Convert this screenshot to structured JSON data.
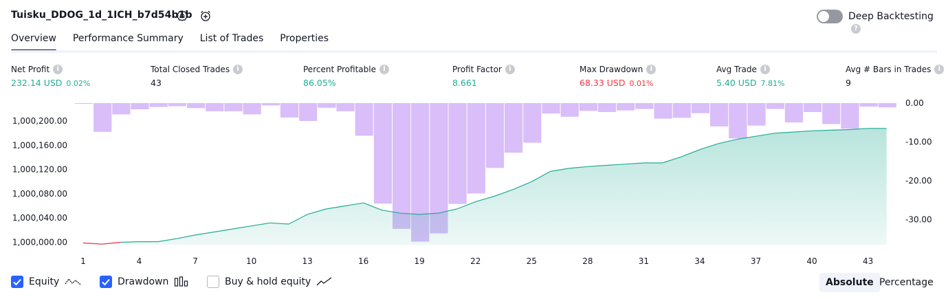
{
  "header": {
    "strategy_name": "Tuisku_DDOG_1d_1ICH_b7d54b1b",
    "settings_icon": "gear-icon",
    "alert_icon": "alarm-clock-plus-icon",
    "deep_backtesting_label": "Deep Backtesting",
    "deep_backtesting_enabled": false,
    "help_icon": "question-circle-icon"
  },
  "tabs": [
    {
      "label": "Overview",
      "active": true
    },
    {
      "label": "Performance Summary",
      "active": false
    },
    {
      "label": "List of Trades",
      "active": false
    },
    {
      "label": "Properties",
      "active": false
    }
  ],
  "stats": [
    {
      "label": "Net Profit",
      "value": "232.14 USD",
      "sub": "0.02%",
      "color": "#22ab94"
    },
    {
      "label": "Total Closed Trades",
      "value": "43",
      "sub": "",
      "color": "#131722"
    },
    {
      "label": "Percent Profitable",
      "value": "86.05%",
      "sub": "",
      "color": "#22ab94"
    },
    {
      "label": "Profit Factor",
      "value": "8.661",
      "sub": "",
      "color": "#22ab94"
    },
    {
      "label": "Max Drawdown",
      "value": "68.33 USD",
      "sub": "0.01%",
      "color": "#f23645"
    },
    {
      "label": "Avg Trade",
      "value": "5.40 USD",
      "sub": "7.81%",
      "color": "#22ab94"
    },
    {
      "label": "Avg # Bars in Trades",
      "value": "9",
      "sub": "",
      "color": "#131722"
    }
  ],
  "chart_data": {
    "type": "area",
    "x_label": "",
    "x_ticks": [
      "1",
      "4",
      "7",
      "10",
      "13",
      "16",
      "19",
      "22",
      "25",
      "28",
      "31",
      "34",
      "37",
      "40",
      "43"
    ],
    "left_axis": {
      "ticks": [
        "1,000,200.00",
        "1,000,160.00",
        "1,000,120.00",
        "1,000,080.00",
        "1,000,040.00",
        "1,000,000.00"
      ],
      "range": [
        999996,
        1000232
      ]
    },
    "right_axis": {
      "ticks": [
        "0.00",
        "-10.00",
        "-20.00",
        "-30.00"
      ],
      "range": [
        -36.5,
        0
      ]
    },
    "series": [
      {
        "name": "Equity",
        "color": "#22ab94",
        "negative_color": "#f23645",
        "x": [
          1,
          2,
          3,
          4,
          5,
          6,
          7,
          8,
          9,
          10,
          11,
          12,
          13,
          14,
          15,
          16,
          17,
          18,
          19,
          20,
          21,
          22,
          23,
          24,
          25,
          26,
          27,
          28,
          29,
          30,
          31,
          32,
          33,
          34,
          35,
          36,
          37,
          38,
          39,
          40,
          41,
          42,
          43,
          44
        ],
        "values": [
          999999,
          999997,
          1000000,
          1000001,
          1000001,
          1000006,
          1000012,
          1000017,
          1000022,
          1000027,
          1000032,
          1000030,
          1000046,
          1000055,
          1000060,
          1000065,
          1000053,
          1000048,
          1000046,
          1000048,
          1000055,
          1000067,
          1000076,
          1000087,
          1000100,
          1000117,
          1000122,
          1000125,
          1000127,
          1000129,
          1000131,
          1000131,
          1000141,
          1000153,
          1000163,
          1000170,
          1000175,
          1000180,
          1000182,
          1000184,
          1000185,
          1000186,
          1000188,
          1000188
        ]
      },
      {
        "name": "Drawdown",
        "color": "#c9a2f7",
        "x": [
          1,
          2,
          3,
          4,
          5,
          6,
          7,
          8,
          9,
          10,
          11,
          12,
          13,
          14,
          15,
          16,
          17,
          18,
          19,
          20,
          21,
          22,
          23,
          24,
          25,
          26,
          27,
          28,
          29,
          30,
          31,
          32,
          33,
          34,
          35,
          36,
          37,
          38,
          39,
          40,
          41,
          42,
          43,
          44
        ],
        "values": [
          -0.2,
          -7.4,
          -2.9,
          -1.6,
          -1.0,
          -0.8,
          -1.3,
          -2.1,
          -2.1,
          -2.9,
          -0.6,
          -3.7,
          -4.6,
          -1.2,
          -2.1,
          -8.4,
          -25.9,
          -32.4,
          -35.7,
          -33.6,
          -26.0,
          -23.3,
          -16.7,
          -12.8,
          -10.2,
          -2.7,
          -3.5,
          -2.0,
          -2.3,
          -1.9,
          -1.5,
          -4.0,
          -3.8,
          -2.6,
          -6.0,
          -9.1,
          -5.8,
          -1.5,
          -5.0,
          -2.3,
          -5.4,
          -6.6,
          -0.9,
          -1.1
        ]
      }
    ],
    "legend": [
      {
        "label": "Equity",
        "checked": true,
        "icon": "equity-line-icon"
      },
      {
        "label": "Drawdown",
        "checked": true,
        "icon": "drawdown-bars-icon"
      },
      {
        "label": "Buy & hold equity",
        "checked": false,
        "icon": "buy-hold-line-icon"
      }
    ],
    "grid": false
  },
  "view_toggle": {
    "absolute_label": "Absolute",
    "percentage_label": "Percentage",
    "selected": "Absolute"
  }
}
